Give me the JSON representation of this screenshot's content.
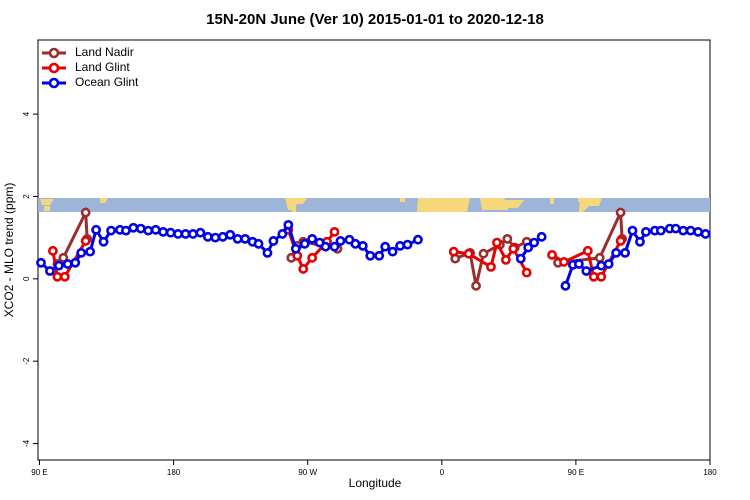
{
  "chart_data": {
    "type": "line",
    "title": "15N-20N June (Ver 10)   2015-01-01 to 2020-12-18",
    "x_label": "Longitude",
    "y_label": "XCO2 - MLO trend (ppm)",
    "xlim": [
      89,
      540
    ],
    "xticks": [
      {
        "value": 90,
        "label": "90 E"
      },
      {
        "value": 180,
        "label": "180"
      },
      {
        "value": 270,
        "label": "90 W"
      },
      {
        "value": 360,
        "label": "0"
      },
      {
        "value": 450,
        "label": "90 E"
      },
      {
        "value": 540,
        "label": "180"
      }
    ],
    "ylim": [
      -4.4,
      5.8
    ],
    "yticks": [
      -4,
      -2,
      0,
      2,
      4
    ],
    "legend": "top-left",
    "series": [
      {
        "name": "Land Nadir",
        "color": "#9b2d2d",
        "x": [
          102,
          106,
          121,
          122,
          200,
          259,
          263,
          267,
          290,
          380,
          369,
          379,
          383,
          388,
          399,
          404,
          409,
          417,
          430,
          438,
          466,
          480,
          481
        ],
        "values": [
          0.36,
          0.51,
          1.61,
          0.97,
          null,
          0.51,
          0.8,
          0.9,
          0.73,
          null,
          0.49,
          0.63,
          -0.17,
          0.61,
          0.83,
          0.97,
          0.76,
          0.9,
          null,
          0.39,
          0.51,
          1.61,
          0.97
        ]
      },
      {
        "name": "Land Glint",
        "color": "#e60000",
        "x": [
          99,
          102,
          107,
          121,
          200,
          257,
          263,
          267,
          273,
          283,
          288,
          380,
          368,
          378,
          393,
          397,
          403,
          408,
          417,
          430,
          434,
          442,
          458,
          462,
          467,
          480
        ],
        "values": [
          0.68,
          0.05,
          0.05,
          0.92,
          null,
          1.19,
          0.56,
          0.24,
          0.51,
          0.9,
          1.14,
          null,
          0.66,
          0.61,
          0.29,
          0.88,
          0.46,
          0.73,
          0.15,
          null,
          0.58,
          0.41,
          0.68,
          0.05,
          0.05,
          0.92
        ]
      },
      {
        "name": "Ocean Glint",
        "color": "#0000e6",
        "x": [
          91,
          97,
          103,
          109,
          114,
          118,
          124,
          128,
          133,
          138,
          144,
          148,
          153,
          158,
          163,
          168,
          173,
          178,
          183,
          188,
          193,
          198,
          203,
          208,
          213,
          218,
          223,
          228,
          233,
          237,
          243,
          247,
          253,
          257,
          262,
          268,
          273,
          278,
          282,
          288,
          292,
          298,
          302,
          307,
          312,
          318,
          322,
          327,
          332,
          337,
          344,
          380,
          413,
          418,
          422,
          427,
          430,
          443,
          448,
          452,
          457,
          467,
          472,
          477,
          483,
          488,
          493,
          497,
          503,
          507,
          513,
          517,
          522,
          527,
          532,
          537
        ],
        "values": [
          0.39,
          0.19,
          0.32,
          0.36,
          0.39,
          0.63,
          0.66,
          1.19,
          0.9,
          1.17,
          1.19,
          1.17,
          1.24,
          1.22,
          1.17,
          1.19,
          1.14,
          1.12,
          1.09,
          1.09,
          1.09,
          1.12,
          1.02,
          1.0,
          1.02,
          1.07,
          0.97,
          0.97,
          0.9,
          0.85,
          0.63,
          0.92,
          1.09,
          1.31,
          0.73,
          0.85,
          0.97,
          0.88,
          0.78,
          0.78,
          0.92,
          0.95,
          0.85,
          0.8,
          0.56,
          0.56,
          0.78,
          0.66,
          0.8,
          0.83,
          0.95,
          null,
          0.49,
          0.76,
          0.88,
          1.02,
          null,
          -0.17,
          0.34,
          0.36,
          0.19,
          0.32,
          0.36,
          0.63,
          0.63,
          1.17,
          0.9,
          1.14,
          1.17,
          1.17,
          1.22,
          1.22,
          1.17,
          1.17,
          1.14,
          1.09
        ]
      }
    ]
  }
}
